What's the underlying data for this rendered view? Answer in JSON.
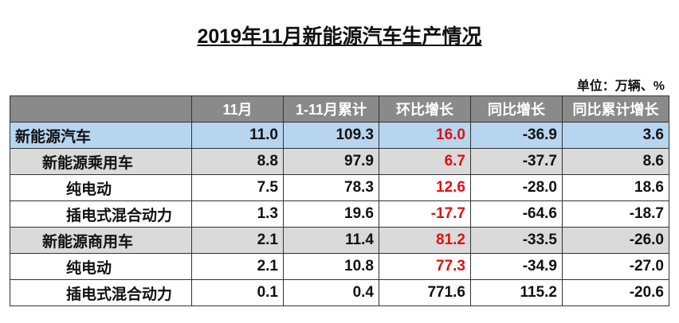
{
  "header": {
    "title": "2019年11月新能源汽车生产情况",
    "unit": "单位：万辆、%"
  },
  "table": {
    "columns": [
      "",
      "11月",
      "1-11月累计",
      "环比增长",
      "同比增长",
      "同比累计增长"
    ],
    "rows": [
      [
        "新能源汽车",
        "11.0",
        "109.3",
        "16.0",
        "-36.9",
        "3.6"
      ],
      [
        "新能源乘用车",
        "8.8",
        "97.9",
        "6.7",
        "-37.7",
        "8.6"
      ],
      [
        "纯电动",
        "7.5",
        "78.3",
        "12.6",
        "-28.0",
        "18.6"
      ],
      [
        "插电式混合动力",
        "1.3",
        "19.6",
        "-17.7",
        "-64.6",
        "-18.7"
      ],
      [
        "新能源商用车",
        "2.1",
        "11.4",
        "81.2",
        "-33.5",
        "-26.0"
      ],
      [
        "纯电动",
        "2.1",
        "10.8",
        "77.3",
        "-34.9",
        "-27.0"
      ],
      [
        "插电式混合动力",
        "0.1",
        "0.4",
        "771.6",
        "115.2",
        "-20.6"
      ]
    ]
  }
}
